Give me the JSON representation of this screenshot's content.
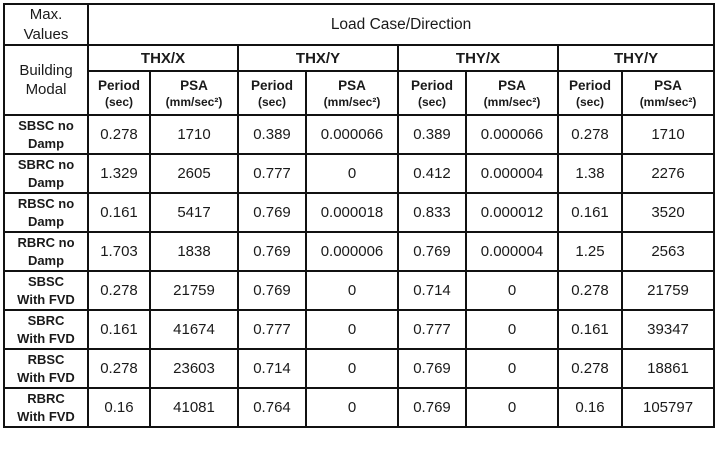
{
  "page": {
    "background_color": "#ffffff",
    "text_color": "#1a1a1a",
    "border_color": "#111111"
  },
  "chart_data": {
    "type": "table",
    "corner": {
      "top": "Max.\nValues",
      "bottom": "Building\nModal"
    },
    "span_header": "Load Case/Direction",
    "groups": [
      "THX/X",
      "THX/Y",
      "THY/X",
      "THY/Y"
    ],
    "sub_headers": {
      "period_label": "Period",
      "period_unit": "(sec)",
      "psa_label": "PSA",
      "psa_unit": "(mm/sec²)"
    },
    "rows": [
      {
        "label": "SBSC no\nDamp",
        "values": [
          "0.278",
          "1710",
          "0.389",
          "0.000066",
          "0.389",
          "0.000066",
          "0.278",
          "1710"
        ]
      },
      {
        "label": "SBRC no\nDamp",
        "values": [
          "1.329",
          "2605",
          "0.777",
          "0",
          "0.412",
          "0.000004",
          "1.38",
          "2276"
        ]
      },
      {
        "label": "RBSC no\nDamp",
        "values": [
          "0.161",
          "5417",
          "0.769",
          "0.000018",
          "0.833",
          "0.000012",
          "0.161",
          "3520"
        ]
      },
      {
        "label": "RBRC no\nDamp",
        "values": [
          "1.703",
          "1838",
          "0.769",
          "0.000006",
          "0.769",
          "0.000004",
          "1.25",
          "2563"
        ]
      },
      {
        "label": "SBSC\nWith FVD",
        "values": [
          "0.278",
          "21759",
          "0.769",
          "0",
          "0.714",
          "0",
          "0.278",
          "21759"
        ]
      },
      {
        "label": "SBRC\nWith FVD",
        "values": [
          "0.161",
          "41674",
          "0.777",
          "0",
          "0.777",
          "0",
          "0.161",
          "39347"
        ]
      },
      {
        "label": "RBSC\nWith FVD",
        "values": [
          "0.278",
          "23603",
          "0.714",
          "0",
          "0.769",
          "0",
          "0.278",
          "18861"
        ]
      },
      {
        "label": "RBRC\nWith FVD",
        "values": [
          "0.16",
          "41081",
          "0.764",
          "0",
          "0.769",
          "0",
          "0.16",
          "105797"
        ]
      }
    ]
  }
}
